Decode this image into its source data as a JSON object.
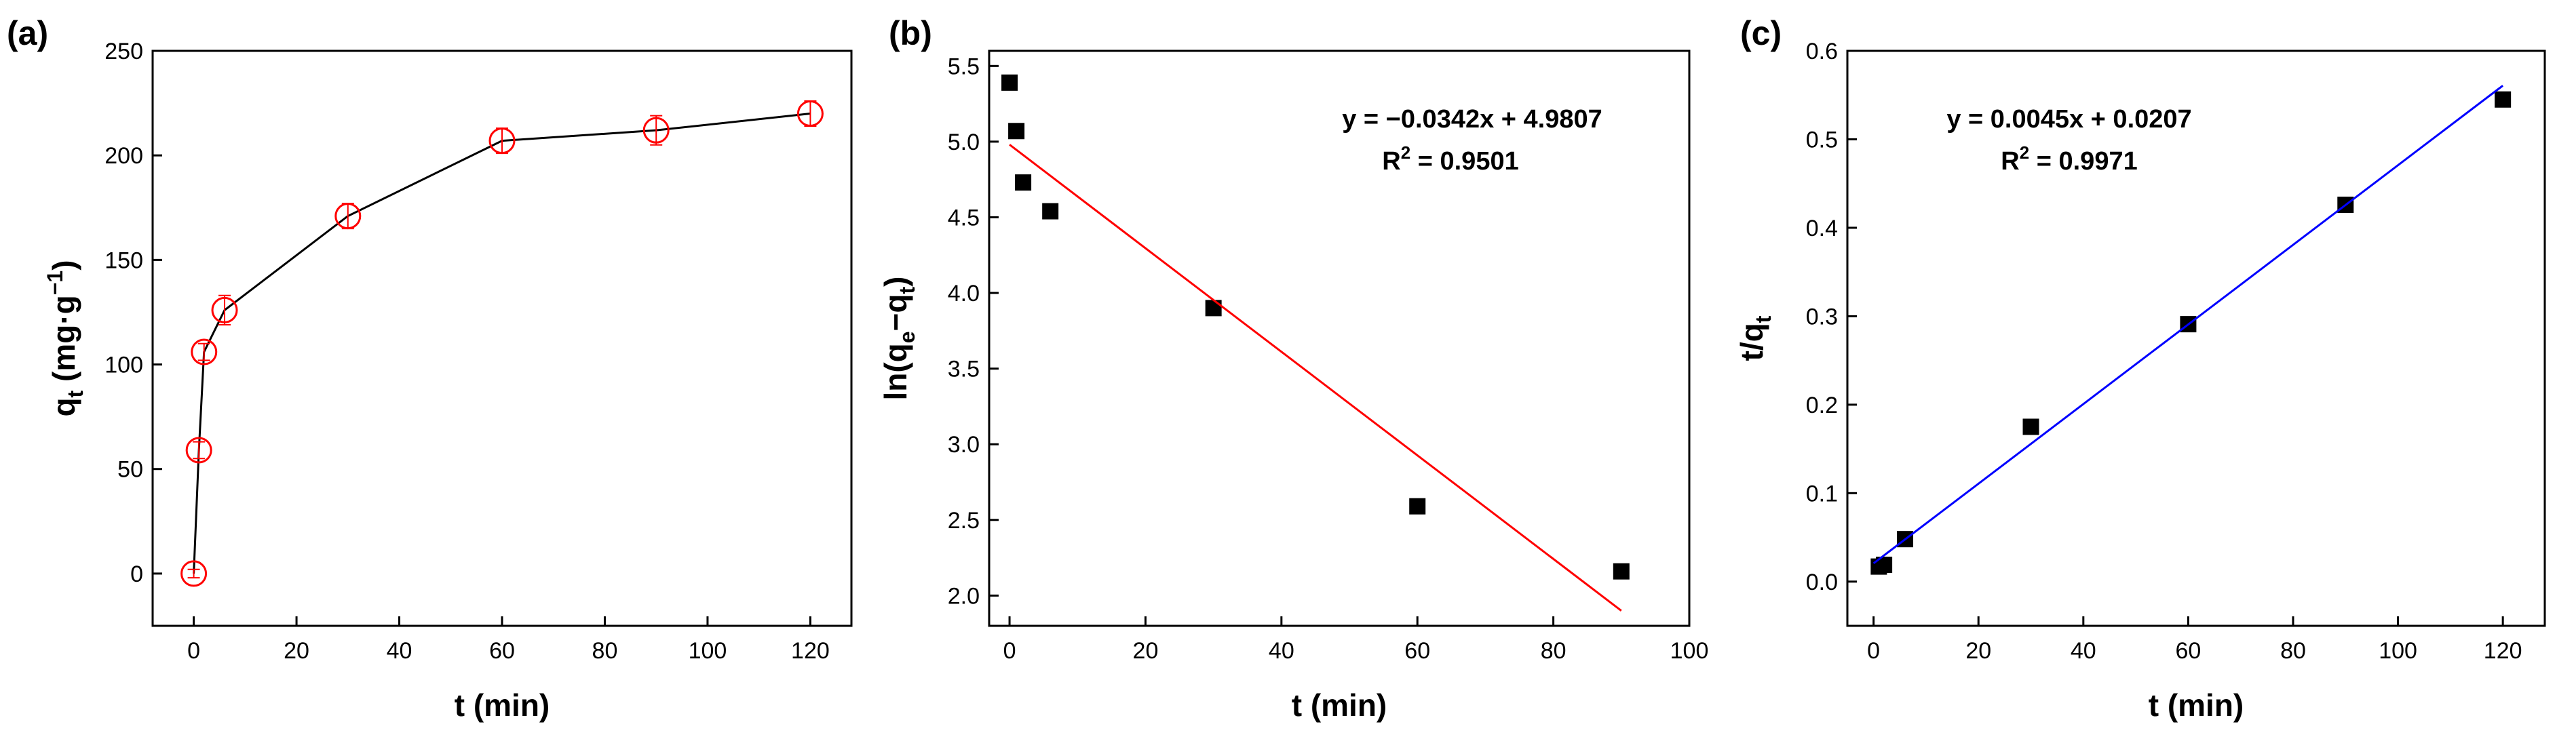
{
  "figure": {
    "panels": [
      {
        "tag": "(a)",
        "x_ticks": [
          "0",
          "20",
          "40",
          "60",
          "80",
          "100",
          "120"
        ],
        "y_ticks": [
          "0",
          "50",
          "100",
          "150",
          "200",
          "250"
        ]
      },
      {
        "tag": "(b)",
        "x_ticks": [
          "0",
          "20",
          "40",
          "60",
          "80",
          "100"
        ],
        "y_ticks": [
          "2.0",
          "2.5",
          "3.0",
          "3.5",
          "4.0",
          "4.5",
          "5.0",
          "5.5"
        ],
        "equation": "y = −0.0342x + 4.9807",
        "r2_prefix": "R",
        "r2_sup": "2",
        "r2_value": " = 0.9501"
      },
      {
        "tag": "(c)",
        "x_ticks": [
          "0",
          "20",
          "40",
          "60",
          "80",
          "100",
          "120"
        ],
        "y_ticks": [
          "0.0",
          "0.1",
          "0.2",
          "0.3",
          "0.4",
          "0.5",
          "0.6"
        ],
        "equation": "y = 0.0045x + 0.0207",
        "r2_prefix": "R",
        "r2_sup": "2",
        "r2_value": " = 0.9971"
      }
    ]
  },
  "chart_data": [
    {
      "type": "line",
      "title": "(a)",
      "xlabel": "t (min)",
      "ylabel_parts": {
        "q": "q",
        "q_sub": "t",
        "unit_open": " (mg·g",
        "unit_sup": "−1",
        "unit_close": ")"
      },
      "xlim": [
        -8,
        128
      ],
      "ylim": [
        -25,
        250
      ],
      "series": [
        {
          "name": "qt",
          "marker": "open-circle",
          "color": "#ff0000",
          "line_color": "#000000",
          "x": [
            0,
            1,
            2,
            6,
            30,
            60,
            90,
            120
          ],
          "y": [
            0,
            59,
            106,
            126,
            171,
            207,
            212,
            220
          ],
          "err": [
            2,
            4,
            4,
            7,
            6,
            6,
            7,
            6
          ]
        }
      ]
    },
    {
      "type": "scatter",
      "title": "(b)",
      "xlabel": "t (min)",
      "ylabel_parts": {
        "prefix": "ln(q",
        "sub1": "e",
        "mid": "−q",
        "sub2": "t",
        "suffix": ")"
      },
      "xlim": [
        -3,
        100
      ],
      "ylim": [
        1.8,
        5.6
      ],
      "series": [
        {
          "name": "data",
          "marker": "square",
          "color": "#000000",
          "x": [
            0,
            1,
            2,
            6,
            30,
            60,
            90
          ],
          "y": [
            5.39,
            5.07,
            4.73,
            4.54,
            3.9,
            2.59,
            2.16
          ]
        },
        {
          "name": "fit",
          "type": "line",
          "color": "#ff0000",
          "x": [
            0,
            90
          ],
          "y": [
            4.98,
            1.9
          ]
        }
      ]
    },
    {
      "type": "scatter",
      "title": "(c)",
      "xlabel": "t (min)",
      "ylabel_parts": {
        "prefix": "t/q",
        "sub": "t"
      },
      "xlim": [
        -5,
        128
      ],
      "ylim": [
        -0.05,
        0.6
      ],
      "series": [
        {
          "name": "data",
          "marker": "square",
          "color": "#000000",
          "x": [
            1,
            2,
            6,
            30,
            60,
            90,
            120
          ],
          "y": [
            0.017,
            0.019,
            0.048,
            0.175,
            0.291,
            0.426,
            0.545
          ]
        },
        {
          "name": "fit",
          "type": "line",
          "color": "#0000ff",
          "x": [
            0,
            120
          ],
          "y": [
            0.0207,
            0.5607
          ]
        }
      ]
    }
  ]
}
